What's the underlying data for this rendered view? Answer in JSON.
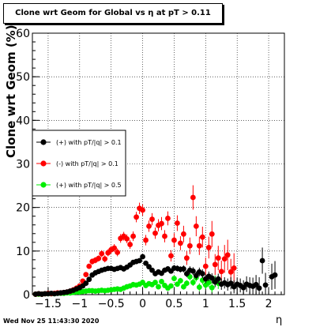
{
  "title": "Clone wrt Geom for Global vs  η at pT > 0.11",
  "footer": "Wed Nov 25 11:43:30 2020",
  "chart_data": {
    "type": "scatter",
    "title": "Clone wrt Geom for Global vs  η at pT > 0.11",
    "xlabel": "η",
    "ylabel": "Clone wrt Geom (%)",
    "xlim": [
      -1.75,
      2.25
    ],
    "ylim": [
      0,
      60
    ],
    "x_ticks": [
      "-1.5",
      "-1",
      "-0.5",
      "0",
      "0.5",
      "1",
      "1.5",
      "2"
    ],
    "y_ticks": [
      "0",
      "10",
      "20",
      "30",
      "40",
      "50",
      "60"
    ],
    "grid": true,
    "legend_position": "left-middle",
    "series": [
      {
        "name": "(+) with pT/|q| > 0.1",
        "color": "#000000",
        "x": [
          -1.7,
          -1.65,
          -1.6,
          -1.55,
          -1.5,
          -1.45,
          -1.4,
          -1.35,
          -1.3,
          -1.25,
          -1.2,
          -1.15,
          -1.1,
          -1.05,
          -1.0,
          -0.95,
          -0.9,
          -0.85,
          -0.8,
          -0.75,
          -0.7,
          -0.65,
          -0.6,
          -0.55,
          -0.5,
          -0.45,
          -0.4,
          -0.35,
          -0.3,
          -0.25,
          -0.2,
          -0.15,
          -0.1,
          -0.05,
          0.0,
          0.05,
          0.1,
          0.15,
          0.2,
          0.25,
          0.3,
          0.35,
          0.4,
          0.45,
          0.5,
          0.55,
          0.6,
          0.65,
          0.7,
          0.75,
          0.8,
          0.85,
          0.9,
          0.95,
          1.0,
          1.05,
          1.1,
          1.15,
          1.2,
          1.25,
          1.3,
          1.35,
          1.4,
          1.45,
          1.5,
          1.55,
          1.6,
          1.65,
          1.7,
          1.75,
          1.8,
          1.85,
          1.9,
          1.95,
          2.05,
          2.1
        ],
        "y": [
          0.1,
          0.2,
          0.1,
          0.2,
          0.2,
          0.3,
          0.2,
          0.3,
          0.4,
          0.5,
          0.6,
          0.8,
          1.0,
          1.3,
          1.6,
          2.0,
          2.6,
          3.5,
          4.5,
          5.0,
          5.3,
          5.6,
          5.8,
          6.0,
          6.0,
          5.8,
          6.0,
          6.2,
          5.9,
          6.3,
          6.8,
          7.4,
          7.6,
          7.8,
          8.7,
          7.2,
          6.4,
          5.6,
          4.8,
          5.2,
          4.9,
          5.6,
          5.9,
          5.4,
          6.1,
          6.0,
          5.8,
          5.9,
          4.8,
          5.6,
          5.4,
          4.4,
          5.2,
          4.8,
          3.6,
          4.2,
          3.8,
          2.9,
          3.6,
          2.4,
          2.7,
          2.3,
          2.6,
          1.8,
          2.4,
          2.1,
          1.6,
          2.4,
          2.1,
          1.9,
          2.3,
          1.5,
          7.8,
          2.2,
          4.1,
          4.5
        ],
        "err": [
          0.1,
          0.1,
          0.1,
          0.1,
          0.1,
          0.1,
          0.1,
          0.1,
          0.1,
          0.1,
          0.1,
          0.1,
          0.2,
          0.2,
          0.2,
          0.2,
          0.3,
          0.3,
          0.4,
          0.4,
          0.4,
          0.4,
          0.4,
          0.4,
          0.4,
          0.4,
          0.4,
          0.4,
          0.4,
          0.4,
          0.5,
          0.5,
          0.5,
          0.5,
          0.6,
          0.5,
          0.5,
          0.5,
          0.5,
          0.5,
          0.5,
          0.6,
          0.6,
          0.6,
          0.7,
          0.7,
          0.7,
          0.8,
          0.8,
          0.9,
          0.9,
          0.9,
          1.0,
          1.0,
          1.0,
          1.1,
          1.1,
          1.2,
          1.2,
          1.3,
          1.3,
          1.4,
          1.4,
          1.5,
          1.5,
          1.6,
          1.7,
          1.8,
          1.9,
          2.0,
          2.2,
          2.5,
          3.0,
          2.8,
          3.0,
          3.2
        ]
      },
      {
        "name": "(-) with pT/|q| > 0.1",
        "color": "#ff0000",
        "x": [
          -1.7,
          -1.65,
          -1.6,
          -1.55,
          -1.5,
          -1.45,
          -1.4,
          -1.35,
          -1.3,
          -1.25,
          -1.2,
          -1.15,
          -1.1,
          -1.05,
          -1.0,
          -0.95,
          -0.9,
          -0.85,
          -0.8,
          -0.75,
          -0.7,
          -0.65,
          -0.6,
          -0.55,
          -0.5,
          -0.45,
          -0.4,
          -0.35,
          -0.3,
          -0.25,
          -0.2,
          -0.15,
          -0.1,
          -0.05,
          0.0,
          0.05,
          0.1,
          0.15,
          0.2,
          0.25,
          0.3,
          0.35,
          0.4,
          0.45,
          0.5,
          0.55,
          0.6,
          0.65,
          0.7,
          0.75,
          0.8,
          0.85,
          0.9,
          0.95,
          1.0,
          1.05,
          1.1,
          1.15,
          1.2,
          1.25,
          1.3,
          1.35,
          1.4,
          1.45
        ],
        "y": [
          0.1,
          0.2,
          0.1,
          0.2,
          0.3,
          0.2,
          0.3,
          0.4,
          0.4,
          0.5,
          0.6,
          0.8,
          1.1,
          1.5,
          2.0,
          3.1,
          4.6,
          6.5,
          7.6,
          7.9,
          8.3,
          9.4,
          8.2,
          9.6,
          10.3,
          10.7,
          9.7,
          12.9,
          13.4,
          12.8,
          11.5,
          13.4,
          17.8,
          19.8,
          19.4,
          12.5,
          15.7,
          17.3,
          14.1,
          15.9,
          16.3,
          13.4,
          17.5,
          8.9,
          12.5,
          16.4,
          11.8,
          13.9,
          8.4,
          11.2,
          22.3,
          15.7,
          11.2,
          13.2,
          6.5,
          10.8,
          13.9,
          6.9,
          8.4,
          5.3,
          8.2,
          9.1,
          5.2,
          6.1
        ],
        "err": [
          0.1,
          0.1,
          0.1,
          0.1,
          0.1,
          0.1,
          0.1,
          0.1,
          0.2,
          0.2,
          0.2,
          0.2,
          0.2,
          0.3,
          0.3,
          0.4,
          0.5,
          0.6,
          0.7,
          0.7,
          0.7,
          0.8,
          0.8,
          0.8,
          0.9,
          0.9,
          0.9,
          1.0,
          1.0,
          1.0,
          1.0,
          1.1,
          1.2,
          1.3,
          1.3,
          1.2,
          1.3,
          1.4,
          1.3,
          1.4,
          1.5,
          1.4,
          1.6,
          1.3,
          1.6,
          1.8,
          1.6,
          1.9,
          1.6,
          1.9,
          2.8,
          2.3,
          2.1,
          2.4,
          2.0,
          2.5,
          3.0,
          2.4,
          2.8,
          2.5,
          3.2,
          3.5,
          3.0,
          3.4
        ]
      },
      {
        "name": "(+) with pT/|q| > 0.5",
        "color": "#00ee00",
        "x": [
          -1.7,
          -1.65,
          -1.6,
          -1.55,
          -1.5,
          -1.45,
          -1.4,
          -1.35,
          -1.3,
          -1.25,
          -1.2,
          -1.15,
          -1.1,
          -1.05,
          -1.0,
          -0.95,
          -0.9,
          -0.85,
          -0.8,
          -0.75,
          -0.7,
          -0.65,
          -0.6,
          -0.55,
          -0.5,
          -0.45,
          -0.4,
          -0.35,
          -0.3,
          -0.25,
          -0.2,
          -0.15,
          -0.1,
          -0.05,
          0.0,
          0.05,
          0.1,
          0.15,
          0.2,
          0.25,
          0.3,
          0.35,
          0.4,
          0.45,
          0.5,
          0.55,
          0.6,
          0.65,
          0.7,
          0.75,
          0.8,
          0.85,
          0.9,
          0.95,
          1.0,
          1.05,
          1.1,
          1.15,
          1.2
        ],
        "y": [
          0.1,
          0.1,
          0.1,
          0.2,
          0.2,
          0.2,
          0.2,
          0.3,
          0.3,
          0.3,
          0.4,
          0.4,
          0.5,
          0.6,
          0.6,
          0.7,
          0.8,
          0.9,
          0.9,
          0.8,
          0.9,
          1.0,
          0.9,
          1.0,
          1.1,
          1.2,
          1.3,
          1.2,
          1.5,
          1.8,
          2.0,
          2.3,
          2.2,
          2.4,
          2.8,
          2.1,
          2.5,
          2.3,
          2.8,
          1.8,
          3.0,
          2.1,
          1.5,
          2.0,
          3.7,
          2.4,
          3.2,
          1.8,
          2.6,
          4.1,
          2.8,
          3.9,
          1.7,
          3.3,
          2.2,
          2.8,
          1.6,
          3.2,
          2.6
        ],
        "err": [
          0.05,
          0.05,
          0.05,
          0.05,
          0.05,
          0.05,
          0.05,
          0.1,
          0.1,
          0.1,
          0.1,
          0.1,
          0.1,
          0.1,
          0.1,
          0.1,
          0.15,
          0.15,
          0.15,
          0.15,
          0.15,
          0.2,
          0.2,
          0.2,
          0.2,
          0.2,
          0.25,
          0.25,
          0.25,
          0.3,
          0.3,
          0.3,
          0.35,
          0.35,
          0.4,
          0.4,
          0.4,
          0.45,
          0.45,
          0.45,
          0.5,
          0.5,
          0.5,
          0.55,
          0.6,
          0.6,
          0.65,
          0.65,
          0.7,
          0.8,
          0.8,
          0.9,
          0.9,
          1.0,
          1.0,
          1.1,
          1.1,
          1.2,
          1.3
        ]
      }
    ]
  }
}
